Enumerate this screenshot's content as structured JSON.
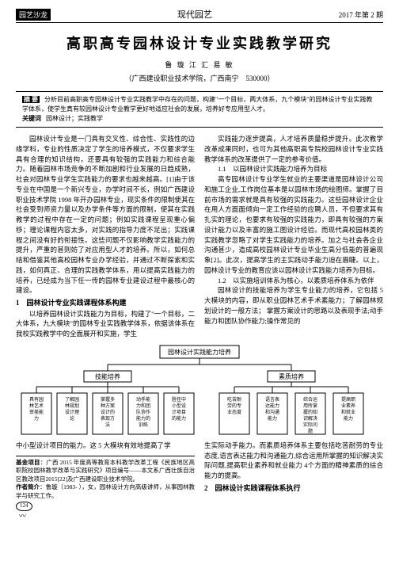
{
  "header": {
    "left_badge": "园艺沙龙",
    "center": "现代园艺",
    "right": "2017 年第 2 期"
  },
  "title": "高职高专园林设计专业实践教学研究",
  "authors": "鲁 璇 江 汇 易 敏",
  "affiliation": "（广西建设职业技术学院，广西南宁　530000）",
  "abstract": {
    "label": "摘 要",
    "text": "分析目前高职高专园林设计专业实践教学中存在的问题，构建\"一个目标，两大体系，九个模块\"的园林设计专业实践教学体系，使学生真有较园林设计专业教学更好地适应社会的发展，培养好专应用型人才。",
    "kw_label": "关键词",
    "kw_text": "园林设计；实践教学"
  },
  "left_col": {
    "p1": "园林设计专业是一门具有交叉性、综合性、实践性的边缘学科，专业的性质决定了学生的培养模式，不仅要求学生具有合理的知识结构，还要具有较强的实践能力和综合能力。随着园林市场竞争的不断加剧和行业发展的日趋成熟，社会对园林专业学生实践能力的要求也越来越高。[1]由于该专业在中国是一个新兴专业，办学时间不长，例如广西建设职业技术学院 1998 年开办园林专业，现实条件的限制使其在社会受到师资力量以及办学条件等方面的限制，使其在实践教学的过程中存在一定的问题；例如实践课程呈现重心偏移；理论课程内容太多，对实践的指导力度不足出；实践课程之间没有好的衔接性。这些问题不仅影响教学实践能力的提升，严重的甚则妨了对应用型人才的培养。所以，如何总结和借鉴其他高校园林专业办学经验，并通过不断探索和实践，如何真正、合理的实践教学体系，用以提高实践能力的培养，已经成为当下任一传的园林专业建设过程中最核心的建设。",
    "hd1": "1　园林设计专业实践课程体系构建",
    "p2": "以培养园林设计实践能力为目标，构建了\"一个目标，二大体系，九大模块\"的园林专业实践教学体系，依据该体系在我校实践教学中的全面展开和实施，学生",
    "below": "中小型设计项目的能力。这 5 大模块有效地提高了学"
  },
  "right_col": {
    "p1": "实践能力逐步提高，人才培养质量稳步提升。此次教学改革成果同时，也可为其他高职高专院校园林设计专业实践教学体系的改革提供了一定的参考价值。",
    "sub1": "1.1　以园林设计实践能力培养为目标",
    "p2": "高专园林设计专业学生就业的主要渠道是园林设计公司和施工企业,工作岗位基本是以园林市场的绘图师。掌握了目前市场的需求就是具有较强的实践能力。这些园林设计企业在用人方面面倾向一定工作经验的应聘人员，不但要求其有扎实的理论，也要求有较强的实践能力，即具有较强的方案设计能力以及丰富的施工图设计经验。而现代高校园林类的实践教学忽略了对学生实践能力的培养。加之与社会各企业沟通甚少，造成高校园林设计专业毕业生高分低能的普遍现象[2]。此次，提高学生的主实践动手能力迫在眉睫。以上，园林设计专业的教育应该以园林设计实践能力培养为目标。",
    "sub2": "1.2　以实施培训体系为核心，以素质培养体系为依伴",
    "p3": "园林设计的技能培养为学生专业能力的培养，它包括 5 大模块的内容，即从职业园林艺术手术素能力；了解园林规划设计的一般方法； 掌握方案设计的思路以及表现手法;动手能力和团队协作能力;操作常见的",
    "below1": "生实际动手能力。而素质培养体系主要包括吃苦耐劳的专业态度,语言表达能力和沟通能力,综合运用所掌握的知识解决实际问题,提高职业素养和就业能力 4个方面的精神素质的综合能力的提高。",
    "hd2": "2　园林设计实践课程体系执行"
  },
  "diagram": {
    "root": "园林设计实践能力培养",
    "left_branch": "技能培养",
    "right_branch": "素质培养",
    "left_boxes": [
      "具有园林艺术审美能力",
      "了解园林规划设计理论",
      "掌握多种方案设计的表现方法",
      "动手能力和团队协作能力的训练",
      "胜任中小型设计项目的能力"
    ],
    "right_boxes": [
      "吃苦耐劳的专业态度",
      "语言表达能力和沟通能力",
      "综合运用所掌握的知识解决实际问题",
      "提高职业素养和就业能力"
    ],
    "colors": {
      "box_bg": "#ffffff",
      "border": "#000000",
      "line": "#000000"
    },
    "font_size": 6
  },
  "footer": {
    "fund_label": "基金项目",
    "fund_text": "广西 2015 年度高等教育本科教学改革工程《民族地区高职院校园林教学改革与实践研究》项目编号——本文系广西壮族自治区教改项目2015[22]及广西建设职业技术学院。",
    "author_label": "作者简介",
    "author_text": "鲁璇（1983- ），女，园林设计方向高级讲师，从事园林教学与研究工作。",
    "page_num": "124"
  }
}
